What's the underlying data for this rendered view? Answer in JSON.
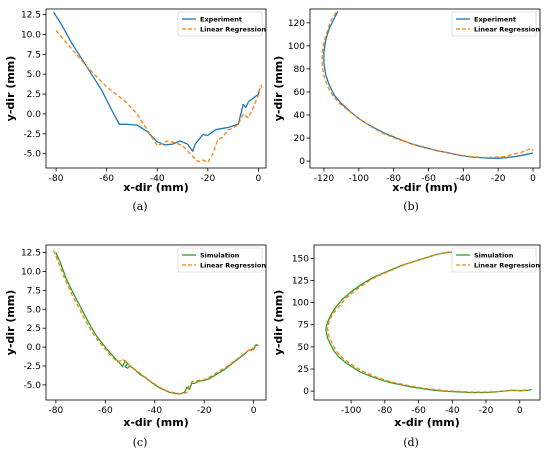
{
  "chart_data": [
    {
      "type": "line",
      "caption": "(a)",
      "xlabel": "x-dir (mm)",
      "ylabel": "y-dir (mm)",
      "xlim": [
        -84,
        3
      ],
      "ylim": [
        -6.8,
        13.2
      ],
      "xticks": [
        -80,
        -60,
        -40,
        -20,
        0
      ],
      "yticks": [
        -5.0,
        -2.5,
        0.0,
        2.5,
        5.0,
        7.5,
        10.0,
        12.5
      ],
      "ytick_decimals": 1,
      "legend_position": "upper-right",
      "series": [
        {
          "name": "Experiment",
          "color": "#1f77b4",
          "dash": false,
          "x": [
            -81,
            -78,
            -74,
            -70,
            -66,
            -62,
            -58,
            -55,
            -52,
            -48,
            -44,
            -40,
            -37,
            -34,
            -31,
            -28,
            -26,
            -25,
            -24,
            -22,
            -20,
            -17,
            -14,
            -12,
            -10,
            -8,
            -6,
            -5,
            -4,
            -2,
            0,
            0.5
          ],
          "y": [
            12.8,
            11.3,
            9,
            7,
            5,
            3,
            0.5,
            -1.3,
            -1.3,
            -1.4,
            -2.2,
            -3.5,
            -3.9,
            -3.8,
            -3.4,
            -3.8,
            -4.7,
            -3.8,
            -3.4,
            -2.6,
            -2.7,
            -2,
            -1.8,
            -1.7,
            -1.5,
            -1.3,
            1.2,
            0.8,
            1.5,
            2,
            2.5,
            3.1
          ]
        },
        {
          "name": "Linear Regression",
          "color": "#ff7f0e",
          "dash": true,
          "x": [
            -80,
            -76,
            -72,
            -68,
            -64,
            -60,
            -56,
            -52,
            -48,
            -44,
            -40,
            -36,
            -33,
            -30,
            -27,
            -24,
            -22,
            -20,
            -18,
            -16,
            -14,
            -12,
            -10,
            -8,
            -6,
            -4,
            -2,
            0,
            1,
            1.5
          ],
          "y": [
            10.5,
            9,
            7.5,
            6,
            4.7,
            3.4,
            2.4,
            1.4,
            0,
            -2,
            -4,
            -3.4,
            -3.6,
            -4,
            -5,
            -6,
            -5.8,
            -6.1,
            -5,
            -3.2,
            -2.9,
            -2,
            -1.8,
            -1.3,
            0,
            -0.5,
            0.8,
            2.4,
            3.6,
            3.3
          ]
        }
      ]
    },
    {
      "type": "line",
      "caption": "(b)",
      "xlabel": "x-dir (mm)",
      "ylabel": "y-dir (mm)",
      "xlim": [
        -128,
        4
      ],
      "ylim": [
        -6,
        132
      ],
      "xticks": [
        -120,
        -100,
        -80,
        -60,
        -40,
        -20,
        0
      ],
      "yticks": [
        0,
        20,
        40,
        60,
        80,
        100,
        120
      ],
      "ytick_decimals": 0,
      "legend_position": "upper-right",
      "series": [
        {
          "name": "Experiment",
          "color": "#1f77b4",
          "dash": false,
          "x": [
            -112,
            -114,
            -117,
            -119,
            -120,
            -120,
            -119,
            -117,
            -114,
            -110,
            -105,
            -100,
            -95,
            -90,
            -85,
            -80,
            -75,
            -70,
            -65,
            -60,
            -55,
            -50,
            -45,
            -40,
            -35,
            -30,
            -25,
            -20,
            -15,
            -10,
            -5,
            0
          ],
          "y": [
            130,
            124,
            115,
            105,
            95,
            85,
            75,
            66,
            57,
            50,
            43,
            37,
            32,
            28,
            24,
            21,
            18,
            15,
            13,
            11,
            9,
            7.5,
            6,
            4.5,
            3.5,
            3,
            2.5,
            2.5,
            3,
            4,
            5.5,
            7
          ]
        },
        {
          "name": "Linear Regression",
          "color": "#ff7f0e",
          "dash": true,
          "x": [
            -113,
            -116,
            -118,
            -120,
            -121,
            -121,
            -120,
            -118,
            -115,
            -111,
            -106,
            -101,
            -96,
            -91,
            -86,
            -81,
            -76,
            -71,
            -66,
            -61,
            -56,
            -51,
            -46,
            -41,
            -36,
            -31,
            -26,
            -21,
            -16,
            -11,
            -6,
            -1,
            0
          ],
          "y": [
            129,
            122,
            113,
            103,
            94,
            83,
            74,
            65,
            57,
            50,
            44,
            38,
            33,
            28,
            24,
            21,
            18,
            16,
            13,
            11,
            9.5,
            8,
            6.5,
            5,
            4,
            3.5,
            3,
            3.5,
            4,
            6,
            8,
            11,
            9
          ]
        }
      ]
    },
    {
      "type": "line",
      "caption": "(c)",
      "xlabel": "x-dir (mm)",
      "ylabel": "y-dir (mm)",
      "xlim": [
        -84,
        5
      ],
      "ylim": [
        -7,
        13.5
      ],
      "xticks": [
        -80,
        -60,
        -40,
        -20,
        0
      ],
      "yticks": [
        -5.0,
        -2.5,
        0.0,
        2.5,
        5.0,
        7.5,
        10.0,
        12.5
      ],
      "ytick_decimals": 1,
      "legend_position": "upper-right",
      "series": [
        {
          "name": "Simulation",
          "color": "#2ca02c",
          "dash": false,
          "x": [
            -80,
            -78,
            -76,
            -74,
            -72,
            -70,
            -68,
            -66,
            -64,
            -62,
            -60,
            -58,
            -56,
            -54,
            -53,
            -52,
            -51,
            -52,
            -51,
            -50,
            -48,
            -46,
            -44,
            -42,
            -40,
            -38,
            -36,
            -34,
            -32,
            -30,
            -28,
            -27,
            -26,
            -25,
            -24,
            -22,
            -20,
            -18,
            -16,
            -14,
            -12,
            -10,
            -8,
            -6,
            -4,
            -2,
            0,
            1,
            2
          ],
          "y": [
            12.5,
            11,
            9.2,
            7.8,
            6.5,
            5.3,
            4,
            2.8,
            1.7,
            0.8,
            0,
            -0.8,
            -1.5,
            -2.2,
            -2.6,
            -1.8,
            -2.2,
            -2.6,
            -2.8,
            -2.5,
            -3,
            -3.6,
            -4,
            -4.5,
            -5,
            -5.4,
            -5.7,
            -6,
            -6.1,
            -6.2,
            -6,
            -5.3,
            -5.6,
            -4.8,
            -4.8,
            -4.5,
            -4.4,
            -4.2,
            -3.8,
            -3.4,
            -3,
            -2.5,
            -2,
            -1.5,
            -1,
            -0.4,
            -0.3,
            0.3,
            0.2
          ]
        },
        {
          "name": "Linear Regression",
          "color": "#ff7f0e",
          "dash": true,
          "x": [
            -81,
            -79,
            -77,
            -75,
            -73,
            -71,
            -69,
            -67,
            -65,
            -63,
            -61,
            -59,
            -57,
            -55,
            -53,
            -51,
            -49,
            -47,
            -45,
            -43,
            -41,
            -39,
            -37,
            -35,
            -33,
            -31,
            -29,
            -27,
            -26,
            -25,
            -24,
            -22,
            -20,
            -18,
            -16,
            -14,
            -12,
            -10,
            -8,
            -6,
            -4,
            -2,
            -1,
            0,
            1
          ],
          "y": [
            12.8,
            11.2,
            9.5,
            8,
            6.6,
            5.4,
            4.1,
            2.9,
            1.8,
            0.9,
            0.1,
            -0.7,
            -1.4,
            -2,
            -1.6,
            -2.2,
            -2.7,
            -3.2,
            -3.7,
            -4.2,
            -4.7,
            -5.1,
            -5.5,
            -5.8,
            -6,
            -6.1,
            -6.2,
            -6,
            -5,
            -4.6,
            -4.5,
            -4.4,
            -4.3,
            -4,
            -3.6,
            -3.2,
            -2.8,
            -2.4,
            -1.9,
            -1.4,
            -0.9,
            -0.4,
            -0.6,
            0.1,
            0.3
          ]
        }
      ]
    },
    {
      "type": "line",
      "caption": "(d)",
      "xlabel": "x-dir (mm)",
      "ylabel": "y-dir (mm)",
      "xlim": [
        -122,
        12
      ],
      "ylim": [
        -10,
        165
      ],
      "xticks": [
        -100,
        -80,
        -60,
        -40,
        -20,
        0
      ],
      "yticks": [
        0,
        25,
        50,
        75,
        100,
        125,
        150
      ],
      "ytick_decimals": 0,
      "legend_position": "upper-right",
      "series": [
        {
          "name": "Simulation",
          "color": "#2ca02c",
          "dash": false,
          "x": [
            -40,
            -45,
            -50,
            -55,
            -60,
            -65,
            -70,
            -75,
            -80,
            -85,
            -90,
            -95,
            -100,
            -105,
            -109,
            -112,
            -114,
            -115,
            -114,
            -112,
            -110,
            -107,
            -103,
            -99,
            -95,
            -90,
            -85,
            -80,
            -75,
            -70,
            -65,
            -60,
            -55,
            -50,
            -45,
            -40,
            -35,
            -30,
            -25,
            -20,
            -15,
            -10,
            -5,
            0,
            5,
            7
          ],
          "y": [
            157,
            156,
            154,
            151,
            148,
            145,
            142,
            138,
            134,
            130,
            125,
            119,
            112,
            104,
            95,
            86,
            78,
            70,
            60,
            52,
            45,
            38,
            32,
            27,
            22,
            18,
            14.5,
            11.5,
            9,
            7,
            5,
            3.5,
            2,
            1,
            0,
            -0.5,
            -1,
            -1.5,
            -1.5,
            -1.5,
            -1,
            0,
            1,
            0.5,
            1,
            2
          ]
        },
        {
          "name": "Linear Regression",
          "color": "#ff7f0e",
          "dash": true,
          "x": [
            -38,
            -43,
            -48,
            -53,
            -58,
            -63,
            -68,
            -73,
            -78,
            -83,
            -88,
            -93,
            -98,
            -103,
            -107,
            -111,
            -113,
            -114,
            -113,
            -111,
            -109,
            -106,
            -102,
            -98,
            -94,
            -89,
            -84,
            -79,
            -74,
            -69,
            -64,
            -59,
            -54,
            -49,
            -44,
            -39,
            -34,
            -29,
            -24,
            -19,
            -14,
            -9,
            -4,
            1,
            4
          ],
          "y": [
            158,
            157,
            155,
            152,
            149,
            146,
            143,
            139,
            135,
            131,
            126,
            120,
            113,
            105,
            96,
            87,
            79,
            71,
            61,
            53,
            46,
            39,
            33,
            28,
            23,
            19,
            15,
            12,
            9.5,
            7.5,
            5.5,
            4,
            2.5,
            1.5,
            0.5,
            0,
            -0.5,
            -1,
            -1,
            -1,
            -0.5,
            0,
            1,
            0.5,
            1.5
          ]
        }
      ]
    }
  ]
}
